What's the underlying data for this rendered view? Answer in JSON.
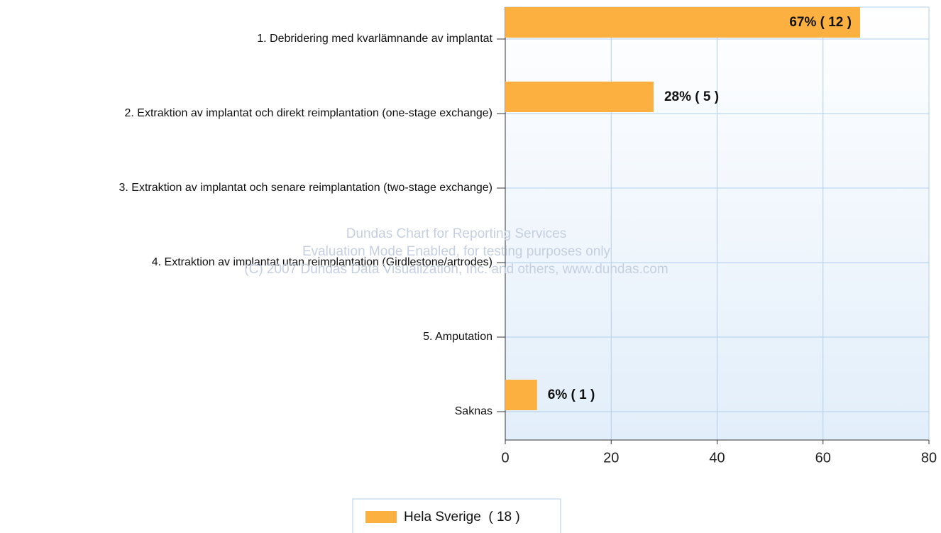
{
  "chart_data": {
    "type": "hbar",
    "categories": [
      "1. Debridering med kvarlämnande av implantat",
      "2. Extraktion av implantat och direkt reimplantation (one-stage exchange)",
      "3. Extraktion av implantat och senare reimplantation (two-stage exchange)",
      "4. Extraktion av implantat utan reimplantation (Girdlestone/artrodes)",
      "5. Amputation",
      "Saknas"
    ],
    "series": [
      {
        "name": "Hela Sverige  ( 18 )",
        "color": "#fbb040",
        "values": [
          67,
          28,
          null,
          null,
          null,
          6
        ],
        "value_labels": [
          "67% ( 12 )",
          "28% ( 5 )",
          null,
          null,
          null,
          "6% ( 1 )"
        ]
      }
    ],
    "xlim": [
      0,
      80
    ],
    "xticks": [
      0,
      20,
      40,
      60,
      80
    ],
    "grid": true,
    "legend": "bottom",
    "annotations": [
      "Dundas Chart for Reporting Services",
      "Evaluation Mode Enabled, for testing purposes only",
      "(C) 2007 Dundas Data Visualization, Inc. and others, www.dundas.com"
    ]
  }
}
